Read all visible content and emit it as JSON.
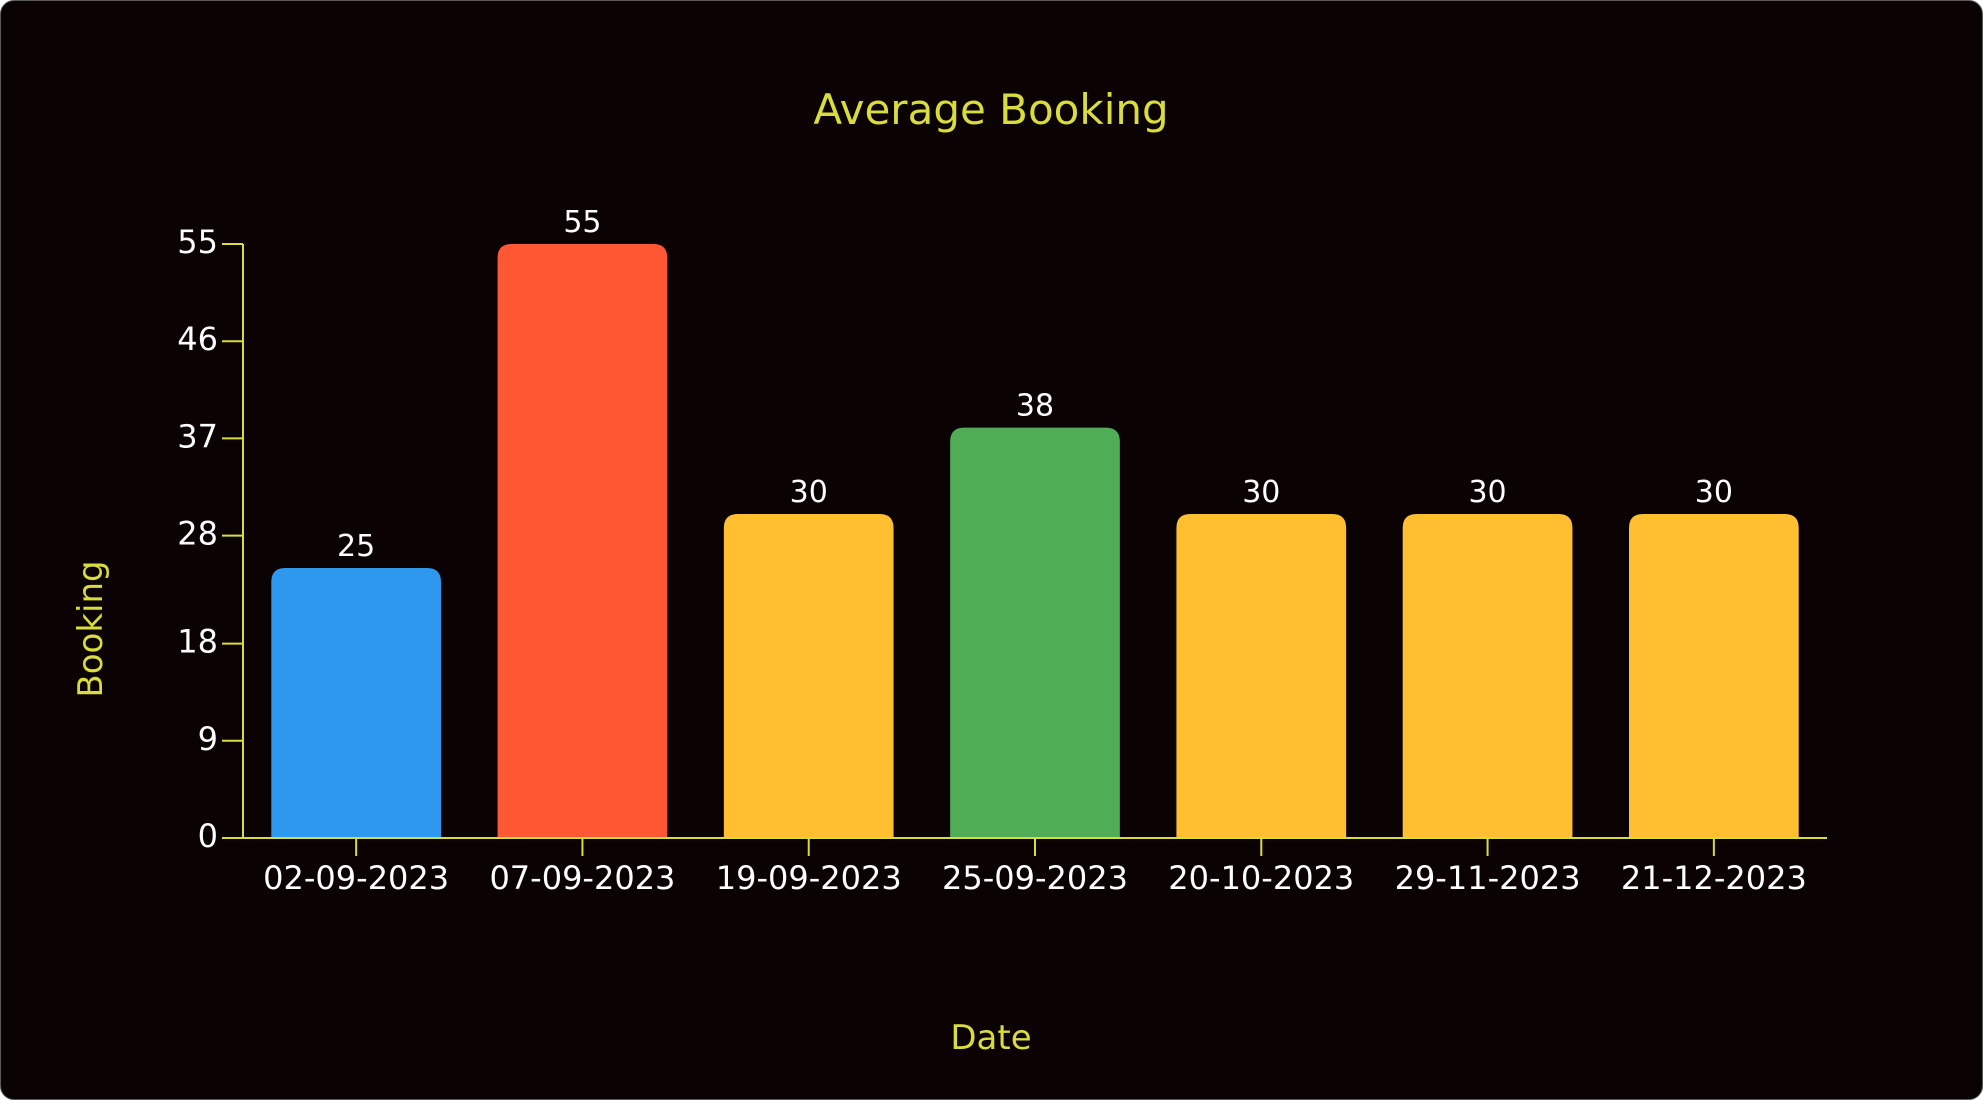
{
  "chart_data": {
    "type": "bar",
    "title": "Average Booking",
    "xlabel": "Date",
    "ylabel": "Booking",
    "categories": [
      "02-09-2023",
      "07-09-2023",
      "19-09-2023",
      "25-09-2023",
      "20-10-2023",
      "29-11-2023",
      "21-12-2023"
    ],
    "values": [
      25,
      55,
      30,
      38,
      30,
      30,
      30
    ],
    "bar_colors": [
      "#2e98ee",
      "#ff5733",
      "#ffbf30",
      "#4fae55",
      "#ffbf30",
      "#ffbf30",
      "#ffbf30"
    ],
    "yticks": [
      0,
      9,
      18,
      28,
      37,
      46,
      55
    ],
    "ylim": [
      0,
      55
    ],
    "data_labels": true,
    "grid": false,
    "legend": false,
    "colors": {
      "background": "#0b0203",
      "accent": "#d8dc3c",
      "text": "#ffffff"
    }
  }
}
